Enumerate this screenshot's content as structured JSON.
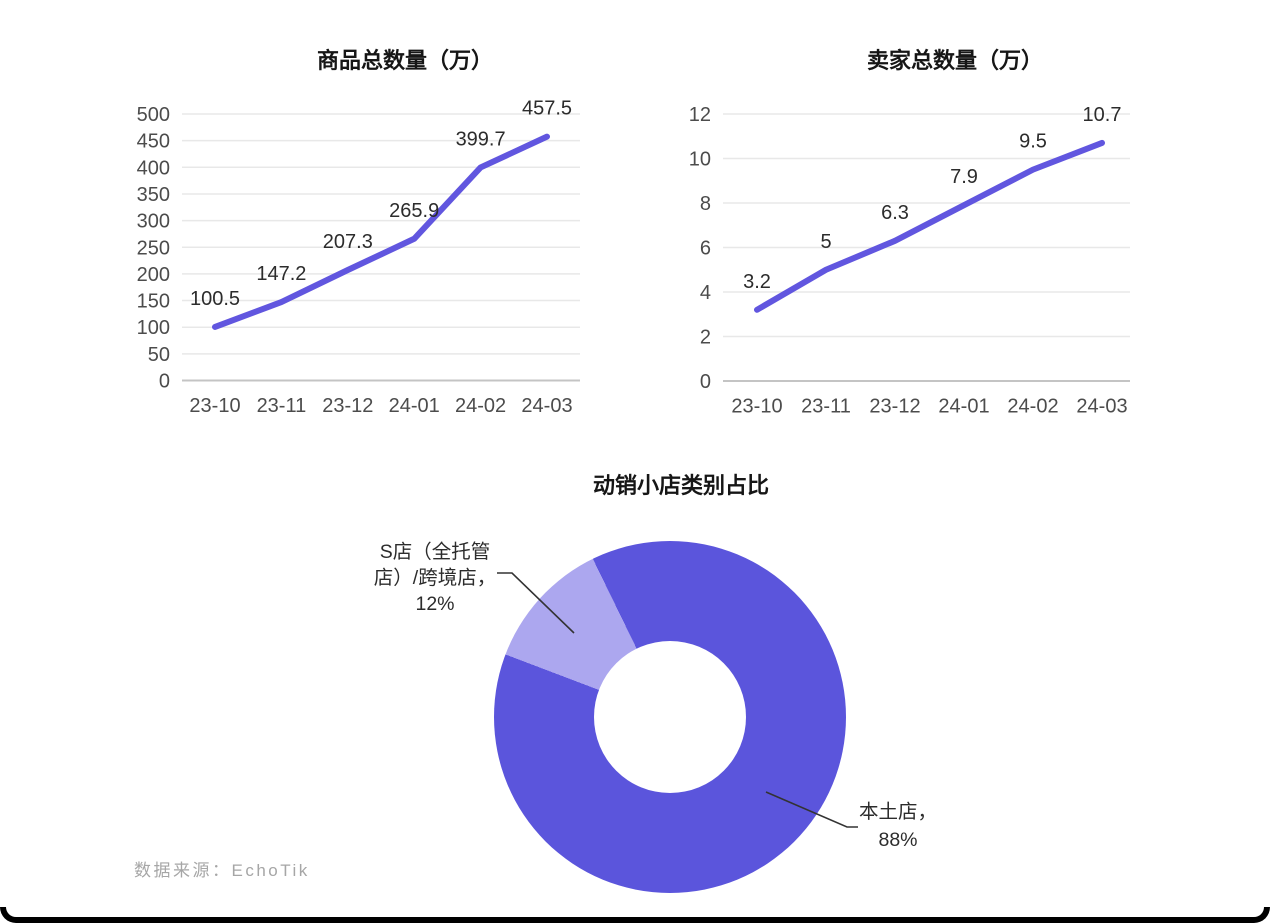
{
  "page": {
    "background": "#ffffff",
    "card_border_color": "#000000",
    "source_note": "数据来源：EchoTik"
  },
  "colors": {
    "line": "#6156df",
    "donut_main": "#5b55dc",
    "donut_light": "#aca7ef",
    "gridline": "#e8e8e8",
    "axis_line": "#c4c4c4",
    "leader_line": "#333333"
  },
  "chart_data": [
    {
      "type": "line",
      "title": "商品总数量（万）",
      "categories": [
        "23-10",
        "23-11",
        "23-12",
        "24-01",
        "24-02",
        "24-03"
      ],
      "values": [
        100.5,
        147.2,
        207.3,
        265.9,
        399.7,
        457.5
      ],
      "yticks": [
        0,
        50,
        100,
        150,
        200,
        250,
        300,
        350,
        400,
        450,
        500
      ],
      "ylim": [
        0,
        500
      ],
      "grid": true,
      "legend": "none",
      "line_color": "#6156df"
    },
    {
      "type": "line",
      "title": "卖家总数量（万）",
      "categories": [
        "23-10",
        "23-11",
        "23-12",
        "24-01",
        "24-02",
        "24-03"
      ],
      "values": [
        3.2,
        5,
        6.3,
        7.9,
        9.5,
        10.7
      ],
      "yticks": [
        0,
        2,
        4,
        6,
        8,
        10,
        12
      ],
      "ylim": [
        0,
        12
      ],
      "grid": true,
      "legend": "none",
      "line_color": "#6156df"
    },
    {
      "type": "pie",
      "donut": true,
      "title": "动销小店类别占比",
      "slices": [
        {
          "label": "本土店",
          "value": 88,
          "display": "本土店，\n88%",
          "color": "#5b55dc"
        },
        {
          "label": "S店（全托管店）/跨境店",
          "value": 12,
          "display": "S店（全托管\n店）/跨境店，\n12%",
          "color": "#aca7ef"
        }
      ]
    }
  ]
}
